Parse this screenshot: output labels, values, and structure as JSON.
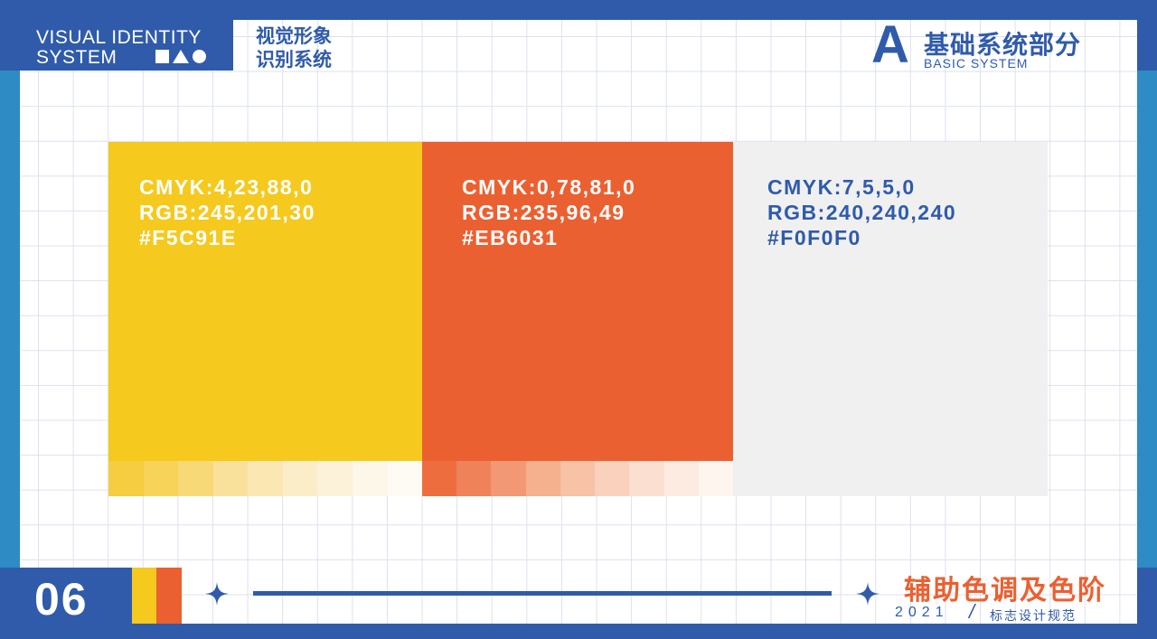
{
  "header": {
    "vi_line1": "VISUAL IDENTITY",
    "vi_line2": "SYSTEM",
    "cn_line1": "视觉形象",
    "cn_line2": "识别系统",
    "section_letter": "A",
    "section_title": "基础系统部分",
    "section_subtitle": "BASIC SYSTEM"
  },
  "swatches": [
    {
      "cmyk": "CMYK:4,23,88,0",
      "rgb": "RGB:245,201,30",
      "hex": "#F5C91E",
      "color": "#F5C91E",
      "text_color": "#FFFFFF",
      "tints": [
        "#F6CC40",
        "#F7D35A",
        "#F8D977",
        "#F9E19B",
        "#FAE7B2",
        "#FBEDC7",
        "#FCF2D9",
        "#FDF7EA",
        "#FEFAF4"
      ]
    },
    {
      "cmyk": "CMYK:0,78,81,0",
      "rgb": "RGB:235,96,49",
      "hex": "#EB6031",
      "color": "#EB6031",
      "text_color": "#FFFFFF",
      "tints": [
        "#EE6D3F",
        "#F0825A",
        "#F29874",
        "#F5B08E",
        "#F7C2A6",
        "#F9D1BC",
        "#FBDFD0",
        "#FDEBE1",
        "#FEF5EE"
      ]
    },
    {
      "cmyk": "CMYK:7,5,5,0",
      "rgb": "RGB:240,240,240",
      "hex": "#F0F0F0",
      "color": "#F0F0F0",
      "text_color": "#2F5BAA",
      "tints": []
    }
  ],
  "footer": {
    "page_number": "06",
    "title": "辅助色调及色阶",
    "year": "2021",
    "label": "标志设计规范"
  },
  "colors": {
    "brand_blue": "#2F5BAA",
    "side_blue": "#2E8BC4",
    "yellow": "#F5C91E",
    "orange": "#EB6031"
  }
}
